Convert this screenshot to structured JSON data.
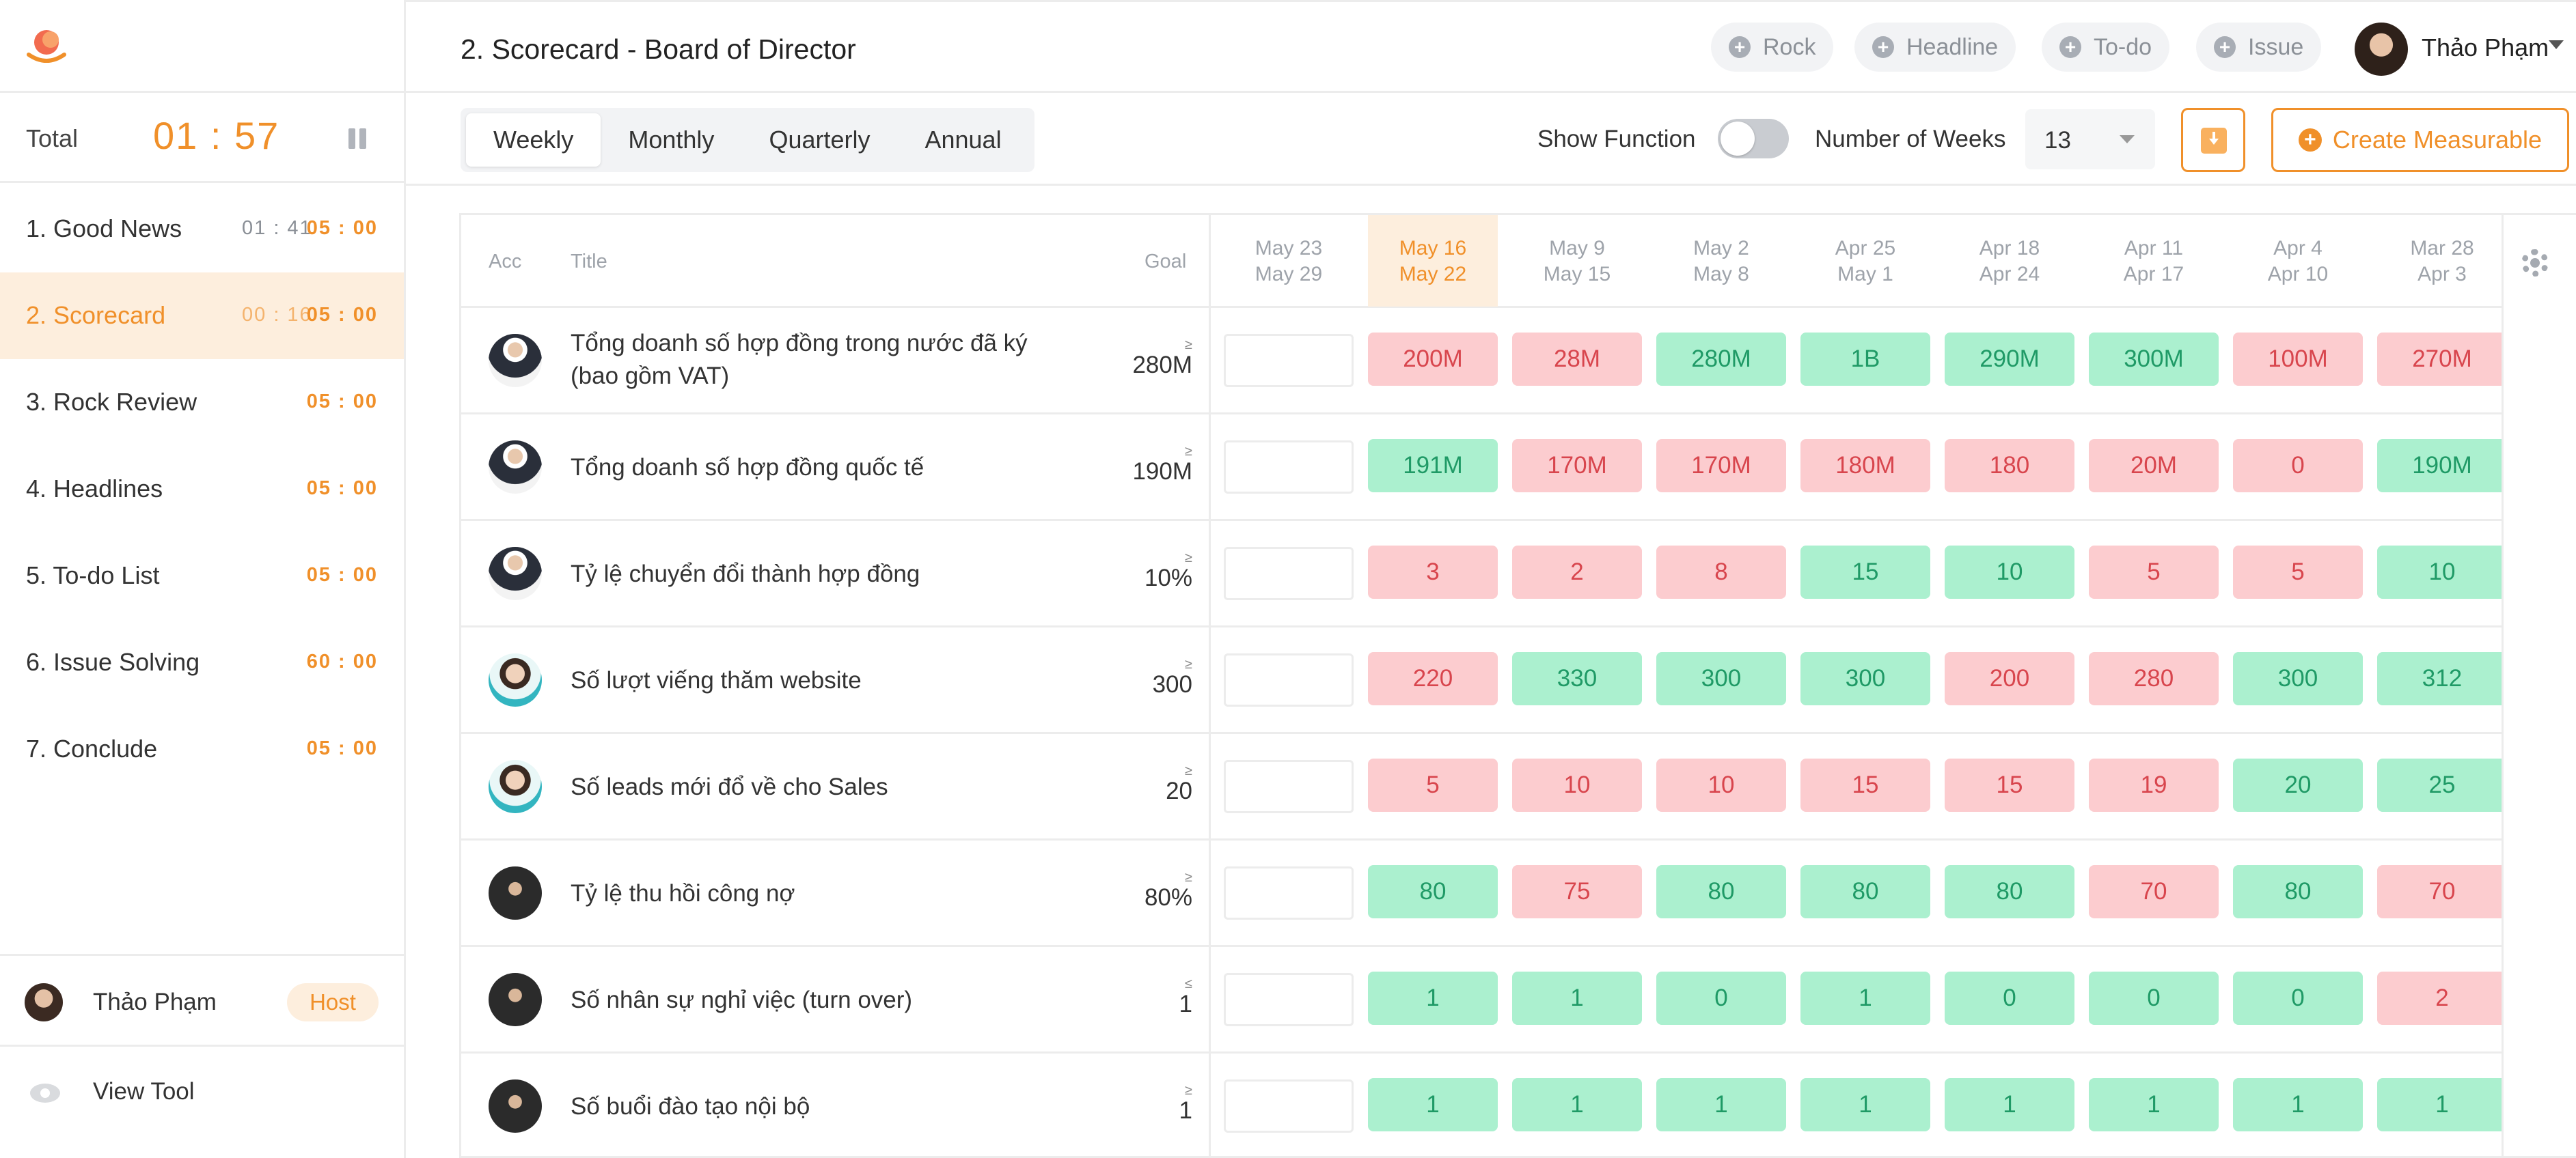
{
  "header": {
    "title": "2. Scorecard - Board of Director",
    "quick_actions": [
      "Rock",
      "Headline",
      "To-do",
      "Issue"
    ],
    "user_name": "Thảo Phạm"
  },
  "sidebar": {
    "total_label": "Total",
    "total_time": "01 : 57",
    "agenda": [
      {
        "label": "1.  Good News",
        "elapsed": "01 : 41",
        "duration": "05 : 00"
      },
      {
        "label": "2.  Scorecard",
        "elapsed": "00 : 16",
        "duration": "05 : 00"
      },
      {
        "label": "3.  Rock Review",
        "elapsed": "",
        "duration": "05 : 00"
      },
      {
        "label": "4.  Headlines",
        "elapsed": "",
        "duration": "05 : 00"
      },
      {
        "label": "5.  To-do List",
        "elapsed": "",
        "duration": "05 : 00"
      },
      {
        "label": "6.  Issue Solving",
        "elapsed": "",
        "duration": "60 : 00"
      },
      {
        "label": "7.  Conclude",
        "elapsed": "",
        "duration": "05 : 00"
      }
    ],
    "host_name": "Thảo Phạm",
    "host_badge": "Host",
    "view_tool": "View Tool"
  },
  "toolbar": {
    "tabs": [
      "Weekly",
      "Monthly",
      "Quarterly",
      "Annual"
    ],
    "active_tab": "Weekly",
    "show_function_label": "Show Function",
    "show_function_on": false,
    "weeks_label": "Number of Weeks",
    "weeks_value": "13",
    "create_label": "Create Measurable"
  },
  "table": {
    "columns": {
      "acc": "Acc",
      "title": "Title",
      "goal": "Goal"
    },
    "weeks": [
      {
        "top": "May 23",
        "bottom": "May 29"
      },
      {
        "top": "May 16",
        "bottom": "May 22"
      },
      {
        "top": "May 9",
        "bottom": "May 15"
      },
      {
        "top": "May 2",
        "bottom": "May 8"
      },
      {
        "top": "Apr 25",
        "bottom": "May 1"
      },
      {
        "top": "Apr 18",
        "bottom": "Apr 24"
      },
      {
        "top": "Apr 11",
        "bottom": "Apr 17"
      },
      {
        "top": "Apr 4",
        "bottom": "Apr 10"
      },
      {
        "top": "Mar 28",
        "bottom": "Apr 3"
      }
    ],
    "rows": [
      {
        "title": "Tổng doanh số hợp đồng trong nước đã ký (bao gồm VAT)",
        "goal_op": "≥",
        "goal": "280M",
        "avatar": "suit",
        "values": [
          "200M",
          "28M",
          "280M",
          "1B",
          "290M",
          "300M",
          "100M",
          "270M"
        ],
        "status": [
          "red",
          "red",
          "green",
          "green",
          "green",
          "green",
          "red",
          "red"
        ]
      },
      {
        "title": "Tổng doanh số hợp đồng quốc tế",
        "goal_op": "≥",
        "goal": "190M",
        "avatar": "suit",
        "values": [
          "191M",
          "170M",
          "170M",
          "180M",
          "180",
          "20M",
          "0",
          "190M"
        ],
        "status": [
          "green",
          "red",
          "red",
          "red",
          "red",
          "red",
          "red",
          "green"
        ]
      },
      {
        "title": "Tỷ lệ chuyển đổi thành hợp đồng",
        "goal_op": "≥",
        "goal": "10%",
        "avatar": "suit",
        "values": [
          "3",
          "2",
          "8",
          "15",
          "10",
          "5",
          "5",
          "10"
        ],
        "status": [
          "red",
          "red",
          "red",
          "green",
          "green",
          "red",
          "red",
          "green"
        ]
      },
      {
        "title": "Số lượt viếng thăm website",
        "goal_op": "≥",
        "goal": "300",
        "avatar": "lady",
        "values": [
          "220",
          "330",
          "300",
          "300",
          "200",
          "280",
          "300",
          "312"
        ],
        "status": [
          "red",
          "green",
          "green",
          "green",
          "red",
          "red",
          "green",
          "green"
        ]
      },
      {
        "title": "Số leads mới đổ về cho Sales",
        "goal_op": "≥",
        "goal": "20",
        "avatar": "lady",
        "values": [
          "5",
          "10",
          "10",
          "15",
          "15",
          "19",
          "20",
          "25"
        ],
        "status": [
          "red",
          "red",
          "red",
          "red",
          "red",
          "red",
          "green",
          "green"
        ]
      },
      {
        "title": "Tỷ lệ thu hồi công nợ",
        "goal_op": "≥",
        "goal": "80%",
        "avatar": "dark",
        "values": [
          "80",
          "75",
          "80",
          "80",
          "80",
          "70",
          "80",
          "70"
        ],
        "status": [
          "green",
          "red",
          "green",
          "green",
          "green",
          "red",
          "green",
          "red"
        ]
      },
      {
        "title": "Số nhân sự nghỉ việc (turn over)",
        "goal_op": "≤",
        "goal": "1",
        "avatar": "dark",
        "values": [
          "1",
          "1",
          "0",
          "1",
          "0",
          "0",
          "0",
          "2"
        ],
        "status": [
          "green",
          "green",
          "green",
          "green",
          "green",
          "green",
          "green",
          "red"
        ]
      },
      {
        "title": "Số buổi đào tạo nội bộ",
        "goal_op": "≥",
        "goal": "1",
        "avatar": "dark",
        "values": [
          "1",
          "1",
          "1",
          "1",
          "1",
          "1",
          "1",
          "1"
        ],
        "status": [
          "green",
          "green",
          "green",
          "green",
          "green",
          "green",
          "green",
          "green"
        ]
      }
    ]
  },
  "colors": {
    "accent": "#f0902a",
    "red_bg": "#fccccf",
    "red_text": "#d8454d",
    "green_bg": "#abf0cf",
    "green_text": "#1f9a66"
  }
}
